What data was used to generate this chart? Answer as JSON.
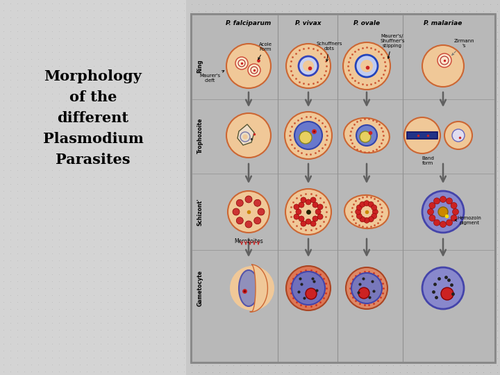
{
  "title_lines": [
    "Morphology",
    "of the",
    "different",
    "Plasmodium",
    "Parasites"
  ],
  "species": [
    "P. falciparum",
    "P. vivax",
    "P. ovale",
    "P. malariae"
  ],
  "row_labels": [
    "Ring",
    "Trophozoite",
    "Schizont'",
    "Gametocyte"
  ],
  "peach": "#f0c898",
  "peach_dark": "#e8a855",
  "blue_purple": "#8888cc",
  "dark_blue": "#4455aa",
  "red": "#cc2222",
  "dark_red": "#880000",
  "yellow": "#e8d060",
  "bg_color": "#c8c8c8",
  "diagram_bg": "#c0c0c0",
  "dot_color": "#b0b0b0",
  "left_bg": "#d8d8d8"
}
